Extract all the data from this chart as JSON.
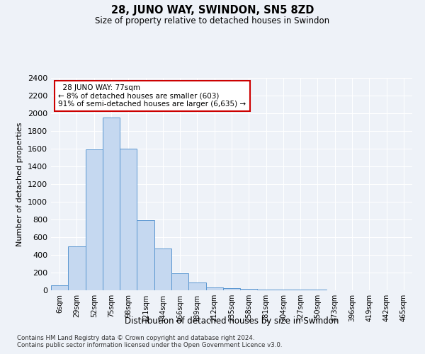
{
  "title": "28, JUNO WAY, SWINDON, SN5 8ZD",
  "subtitle": "Size of property relative to detached houses in Swindon",
  "xlabel": "Distribution of detached houses by size in Swindon",
  "ylabel": "Number of detached properties",
  "footer_line1": "Contains HM Land Registry data © Crown copyright and database right 2024.",
  "footer_line2": "Contains public sector information licensed under the Open Government Licence v3.0.",
  "categories": [
    "6sqm",
    "29sqm",
    "52sqm",
    "75sqm",
    "98sqm",
    "121sqm",
    "144sqm",
    "166sqm",
    "189sqm",
    "212sqm",
    "235sqm",
    "258sqm",
    "281sqm",
    "304sqm",
    "327sqm",
    "350sqm",
    "373sqm",
    "396sqm",
    "419sqm",
    "442sqm",
    "465sqm"
  ],
  "values": [
    60,
    500,
    1590,
    1950,
    1600,
    790,
    470,
    195,
    90,
    35,
    28,
    18,
    5,
    5,
    5,
    5,
    3,
    2,
    1,
    1,
    0
  ],
  "bar_color": "#c5d8f0",
  "bar_edge_color": "#5a96d0",
  "ylim": [
    0,
    2400
  ],
  "yticks": [
    0,
    200,
    400,
    600,
    800,
    1000,
    1200,
    1400,
    1600,
    1800,
    2000,
    2200,
    2400
  ],
  "property_label": "28 JUNO WAY: 77sqm",
  "pct_smaller": 8,
  "n_smaller": 603,
  "pct_larger_semi": 91,
  "n_larger_semi": 6635,
  "annotation_box_color": "#ffffff",
  "annotation_box_edge": "#cc0000",
  "background_color": "#eef2f8",
  "grid_color": "#ffffff"
}
